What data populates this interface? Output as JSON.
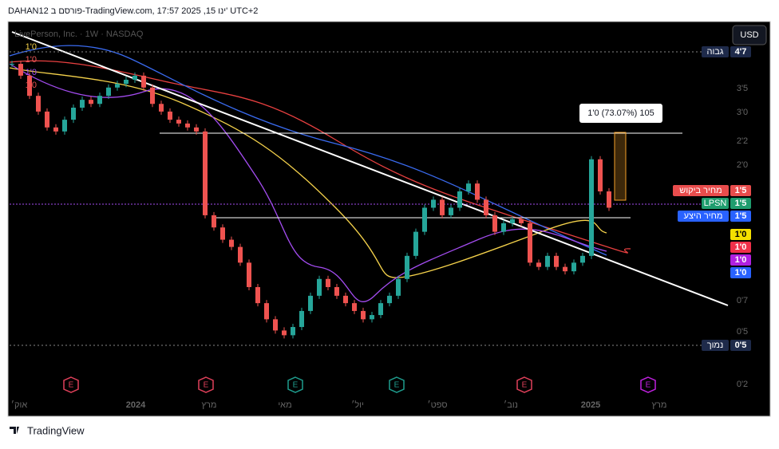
{
  "header": "DAHAN12 פורסם ב-TradingView.com, 17:57 2025 ,15 ינו' UTC+2",
  "symbol": "LivePerson, Inc. · 1W · NASDAQ",
  "indicators": [
    {
      "label": "1'0",
      "color": "#f5d24b"
    },
    {
      "label": "1'0",
      "color": "#f05a5a"
    },
    {
      "label": "1'0",
      "color": "#a34cf0"
    },
    {
      "label": "1'0",
      "color": "#e85050"
    }
  ],
  "currency": "USD",
  "measure": "1'0 (73.07%) 105",
  "price_axis": [
    "3'5",
    "3'0",
    "2'2",
    "2'0",
    "0'7",
    "0'5",
    "0'2"
  ],
  "price_tags": [
    {
      "name": "גבוה",
      "value": "4'7",
      "color": "#1e2a4a"
    },
    {
      "name": "מחיר ביקוש",
      "value": "1'5",
      "color": "#e84c4c"
    },
    {
      "name": "LPSN",
      "value": "1'5",
      "color": "#1f9d6e"
    },
    {
      "name": "מחיר היצע",
      "value": "1'5",
      "color": "#2962ff"
    },
    {
      "value": "1'0",
      "color": "#f5e000"
    },
    {
      "value": "1'0",
      "color": "#f0304a"
    },
    {
      "value": "1'0",
      "color": "#b020e0"
    },
    {
      "value": "1'0",
      "color": "#2962ff"
    },
    {
      "name": "נמוך",
      "value": "0'5",
      "color": "#1e2a4a"
    }
  ],
  "time_axis": [
    "אוק׳",
    "2024",
    "מרץ",
    "מאי",
    "יול׳",
    "ספט׳",
    "נוב׳",
    "2025",
    "מרץ"
  ],
  "earnings": [
    {
      "label": "E",
      "color": "#e0405a"
    },
    {
      "label": "E",
      "color": "#e0405a"
    },
    {
      "label": "E",
      "color": "#1f9d8e"
    },
    {
      "label": "E",
      "color": "#1f9d8e"
    },
    {
      "label": "E",
      "color": "#e0405a"
    },
    {
      "label": "E",
      "color": "#c020e0"
    }
  ],
  "closes": [
    4.29,
    3.92,
    3.36,
    2.98,
    2.64,
    2.56,
    2.8,
    3.07,
    3.26,
    3.16,
    3.36,
    3.58,
    3.68,
    3.8,
    3.92,
    3.58,
    3.16,
    2.98,
    2.8,
    2.72,
    2.64,
    2.56,
    1.35,
    1.23,
    1.12,
    1.06,
    0.94,
    0.78,
    0.69,
    0.61,
    0.56,
    0.54,
    0.575,
    0.65,
    0.73,
    0.83,
    0.78,
    0.73,
    0.69,
    0.65,
    0.61,
    0.63,
    0.69,
    0.73,
    0.83,
    0.99,
    1.19,
    1.43,
    1.52,
    1.35,
    1.43,
    1.62,
    1.72,
    1.52,
    1.35,
    1.19,
    1.27,
    1.31,
    1.27,
    0.94,
    0.91,
    0.99,
    0.91,
    0.88,
    0.94,
    0.99,
    2.07,
    1.62,
    1.43
  ],
  "up_color": "#26a69a",
  "down_color": "#ef5350",
  "brand": "TradingView"
}
